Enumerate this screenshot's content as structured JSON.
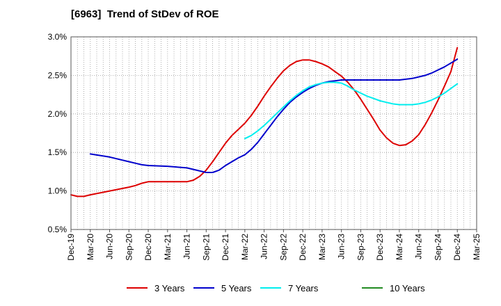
{
  "chart_data": {
    "type": "line",
    "title": "[6963]  Trend of StDev of ROE",
    "xlabel": "",
    "ylabel": "",
    "x_ticks": [
      "Dec-19",
      "Mar-20",
      "Jun-20",
      "Sep-20",
      "Dec-20",
      "Mar-21",
      "Jun-21",
      "Sep-21",
      "Dec-21",
      "Mar-22",
      "Jun-22",
      "Sep-22",
      "Dec-22",
      "Mar-23",
      "Jun-23",
      "Sep-23",
      "Dec-23",
      "Mar-24",
      "Jun-24",
      "Sep-24",
      "Dec-24",
      "Mar-25"
    ],
    "y_ticks": [
      "0.5%",
      "1.0%",
      "1.5%",
      "2.0%",
      "2.5%",
      "3.0%"
    ],
    "ylim": [
      0.5,
      3.0
    ],
    "grid": true,
    "legend_position": "bottom",
    "series": [
      {
        "name": "3 Years",
        "color": "#dd0000",
        "points": [
          [
            "Dec-19",
            0.95
          ],
          [
            "Jan-20",
            0.93
          ],
          [
            "Feb-20",
            0.93
          ],
          [
            "Mar-20",
            0.95
          ],
          [
            "Jun-20",
            1.0
          ],
          [
            "Sep-20",
            1.05
          ],
          [
            "Oct-20",
            1.07
          ],
          [
            "Nov-20",
            1.1
          ],
          [
            "Dec-20",
            1.12
          ],
          [
            "Mar-21",
            1.12
          ],
          [
            "Jun-21",
            1.12
          ],
          [
            "Jul-21",
            1.14
          ],
          [
            "Aug-21",
            1.19
          ],
          [
            "Sep-21",
            1.27
          ],
          [
            "Oct-21",
            1.38
          ],
          [
            "Nov-21",
            1.5
          ],
          [
            "Dec-21",
            1.62
          ],
          [
            "Jan-22",
            1.72
          ],
          [
            "Feb-22",
            1.8
          ],
          [
            "Mar-22",
            1.88
          ],
          [
            "Apr-22",
            1.98
          ],
          [
            "May-22",
            2.1
          ],
          [
            "Jun-22",
            2.23
          ],
          [
            "Jul-22",
            2.35
          ],
          [
            "Aug-22",
            2.46
          ],
          [
            "Sep-22",
            2.56
          ],
          [
            "Oct-22",
            2.63
          ],
          [
            "Nov-22",
            2.68
          ],
          [
            "Dec-22",
            2.7
          ],
          [
            "Jan-23",
            2.7
          ],
          [
            "Feb-23",
            2.68
          ],
          [
            "Mar-23",
            2.65
          ],
          [
            "Apr-23",
            2.61
          ],
          [
            "May-23",
            2.55
          ],
          [
            "Jun-23",
            2.49
          ],
          [
            "Jul-23",
            2.41
          ],
          [
            "Aug-23",
            2.31
          ],
          [
            "Sep-23",
            2.19
          ],
          [
            "Oct-23",
            2.06
          ],
          [
            "Nov-23",
            1.93
          ],
          [
            "Dec-23",
            1.79
          ],
          [
            "Jan-24",
            1.69
          ],
          [
            "Feb-24",
            1.62
          ],
          [
            "Mar-24",
            1.59
          ],
          [
            "Apr-24",
            1.6
          ],
          [
            "May-24",
            1.65
          ],
          [
            "Jun-24",
            1.73
          ],
          [
            "Jul-24",
            1.86
          ],
          [
            "Aug-24",
            2.01
          ],
          [
            "Sep-24",
            2.18
          ],
          [
            "Oct-24",
            2.36
          ],
          [
            "Nov-24",
            2.55
          ],
          [
            "Dec-24",
            2.86
          ]
        ]
      },
      {
        "name": "5 Years",
        "color": "#0000cc",
        "points": [
          [
            "Mar-20",
            1.48
          ],
          [
            "Jun-20",
            1.44
          ],
          [
            "Sep-20",
            1.38
          ],
          [
            "Oct-20",
            1.36
          ],
          [
            "Nov-20",
            1.34
          ],
          [
            "Dec-20",
            1.33
          ],
          [
            "Mar-21",
            1.32
          ],
          [
            "Jun-21",
            1.3
          ],
          [
            "Sep-21",
            1.24
          ],
          [
            "Oct-21",
            1.24
          ],
          [
            "Nov-21",
            1.27
          ],
          [
            "Dec-21",
            1.33
          ],
          [
            "Jan-22",
            1.38
          ],
          [
            "Feb-22",
            1.43
          ],
          [
            "Mar-22",
            1.47
          ],
          [
            "Apr-22",
            1.54
          ],
          [
            "May-22",
            1.63
          ],
          [
            "Jun-22",
            1.74
          ],
          [
            "Jul-22",
            1.85
          ],
          [
            "Aug-22",
            1.96
          ],
          [
            "Sep-22",
            2.06
          ],
          [
            "Oct-22",
            2.15
          ],
          [
            "Nov-22",
            2.22
          ],
          [
            "Dec-22",
            2.28
          ],
          [
            "Jan-23",
            2.33
          ],
          [
            "Feb-23",
            2.37
          ],
          [
            "Mar-23",
            2.4
          ],
          [
            "Apr-23",
            2.42
          ],
          [
            "May-23",
            2.43
          ],
          [
            "Jun-23",
            2.44
          ],
          [
            "Jul-23",
            2.44
          ],
          [
            "Sep-23",
            2.44
          ],
          [
            "Dec-23",
            2.44
          ],
          [
            "Mar-24",
            2.44
          ],
          [
            "Apr-24",
            2.45
          ],
          [
            "May-24",
            2.46
          ],
          [
            "Jun-24",
            2.48
          ],
          [
            "Jul-24",
            2.5
          ],
          [
            "Aug-24",
            2.53
          ],
          [
            "Sep-24",
            2.57
          ],
          [
            "Oct-24",
            2.61
          ],
          [
            "Nov-24",
            2.66
          ],
          [
            "Dec-24",
            2.71
          ]
        ]
      },
      {
        "name": "7 Years",
        "color": "#00eeee",
        "points": [
          [
            "Mar-22",
            1.68
          ],
          [
            "Apr-22",
            1.72
          ],
          [
            "May-22",
            1.78
          ],
          [
            "Jun-22",
            1.85
          ],
          [
            "Jul-22",
            1.93
          ],
          [
            "Aug-22",
            2.01
          ],
          [
            "Sep-22",
            2.09
          ],
          [
            "Oct-22",
            2.17
          ],
          [
            "Nov-22",
            2.24
          ],
          [
            "Dec-22",
            2.3
          ],
          [
            "Jan-23",
            2.35
          ],
          [
            "Feb-23",
            2.38
          ],
          [
            "Mar-23",
            2.4
          ],
          [
            "Apr-23",
            2.41
          ],
          [
            "May-23",
            2.41
          ],
          [
            "Jun-23",
            2.4
          ],
          [
            "Jul-23",
            2.36
          ],
          [
            "Aug-23",
            2.31
          ],
          [
            "Sep-23",
            2.27
          ],
          [
            "Oct-23",
            2.23
          ],
          [
            "Nov-23",
            2.2
          ],
          [
            "Dec-23",
            2.17
          ],
          [
            "Jan-24",
            2.15
          ],
          [
            "Feb-24",
            2.13
          ],
          [
            "Mar-24",
            2.12
          ],
          [
            "Apr-24",
            2.12
          ],
          [
            "May-24",
            2.12
          ],
          [
            "Jun-24",
            2.13
          ],
          [
            "Jul-24",
            2.15
          ],
          [
            "Aug-24",
            2.18
          ],
          [
            "Sep-24",
            2.22
          ],
          [
            "Oct-24",
            2.27
          ],
          [
            "Nov-24",
            2.33
          ],
          [
            "Dec-24",
            2.39
          ]
        ]
      },
      {
        "name": "10 Years",
        "color": "#228b22",
        "points": []
      }
    ]
  }
}
